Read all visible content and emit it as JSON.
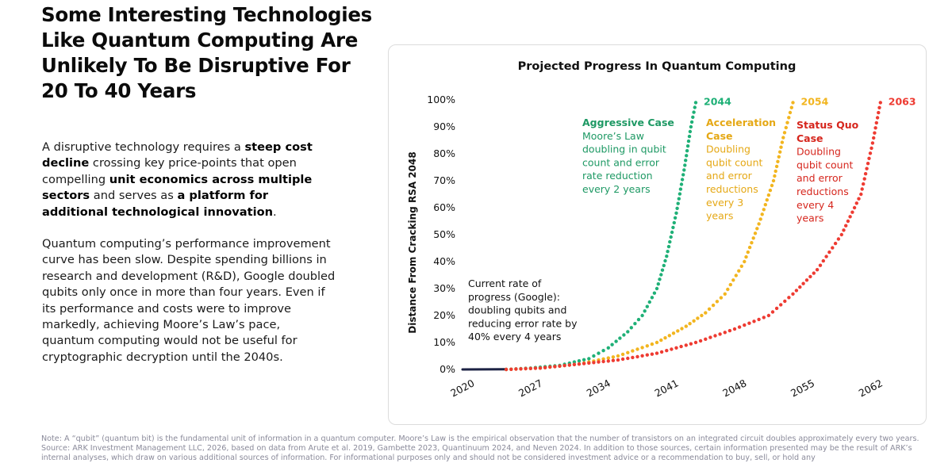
{
  "headline": "Some Interesting Technologies Like Quantum Computing Are Unlikely To Be Disruptive For 20 To 40 Years",
  "body": {
    "p1": [
      {
        "t": "A disruptive technology requires a ",
        "b": false
      },
      {
        "t": "steep cost decline",
        "b": true
      },
      {
        "t": " crossing key price-points that open compelling ",
        "b": false
      },
      {
        "t": "unit economics across multiple sectors",
        "b": true
      },
      {
        "t": " and serves as ",
        "b": false
      },
      {
        "t": "a platform for additional technological innovation",
        "b": true
      },
      {
        "t": ".",
        "b": false
      }
    ],
    "p2": "Quantum computing’s performance improvement curve has been slow. Despite spending billions in research and development (R&D), Google doubled qubits only once in more than four years. Even if its performance and costs were to improve markedly, achieving Moore’s Law’s pace, quantum computing would not be useful for cryptographic decryption until the 2040s."
  },
  "note": "Note: A “qubit” (quantum bit) is the fundamental unit of information in a quantum computer. Moore’s Law is the empirical observation that the number of transistors on an integrated circuit doubles approximately every two years. Source: ARK Investment Management LLC, 2026, based on data from Arute et al. 2019, Gambette 2023, Quantinuum 2024, and Neven 2024. In addition to those sources, certain information presented may be the result of ARK’s internal analyses, which draw on various additional sources of information. For informational purposes only and should not be considered investment advice or a recommendation to buy, sell, or hold any",
  "chart_data": {
    "type": "line",
    "title": "Projected Progress In Quantum Computing",
    "ylabel": "Distance From Cracking RSA 2048",
    "ylim": [
      0,
      100
    ],
    "yticks": [
      "0%",
      "10%",
      "20%",
      "30%",
      "40%",
      "50%",
      "60%",
      "70%",
      "80%",
      "90%",
      "100%"
    ],
    "xlim": [
      2020,
      2064
    ],
    "xticks": [
      2020,
      2027,
      2034,
      2041,
      2048,
      2055,
      2062
    ],
    "grid": false,
    "series": [
      {
        "style": "solid",
        "color": "#1c2244",
        "x": [
          2020,
          2024.5
        ],
        "y": [
          0,
          0.1
        ]
      },
      {
        "color": "#1fb077",
        "end_label": "2044",
        "x": [
          2024.5,
          2027,
          2030,
          2033,
          2035,
          2037,
          2038.5,
          2040,
          2041,
          2042,
          2042.8,
          2043.5,
          2044
        ],
        "y": [
          0,
          0.5,
          1.5,
          4,
          8,
          14,
          20,
          30,
          42,
          58,
          74,
          90,
          99
        ]
      },
      {
        "color": "#f2b51f",
        "end_label": "2054",
        "x": [
          2024.5,
          2028,
          2032,
          2036,
          2040,
          2043,
          2045,
          2047,
          2049,
          2050.5,
          2052,
          2053,
          2054
        ],
        "y": [
          0,
          0.5,
          2,
          5,
          10,
          16,
          21,
          28,
          40,
          54,
          70,
          86,
          99
        ]
      },
      {
        "color": "#ee3b32",
        "end_label": "2063",
        "x": [
          2024.5,
          2028,
          2032,
          2036,
          2040,
          2044,
          2048,
          2051.5,
          2054,
          2056.5,
          2059,
          2061,
          2062.2,
          2063
        ],
        "y": [
          0,
          0.5,
          2,
          3.5,
          6,
          10,
          15,
          20,
          28,
          37,
          50,
          65,
          84,
          99
        ]
      }
    ],
    "annotations": [
      {
        "title": "Aggressive Case",
        "title_color": "#1e9964",
        "text": [
          "Moore’s Law",
          "doubling in qubit",
          "count and error",
          "rate reduction",
          "every 2 years"
        ],
        "text_color": "#1e9964"
      },
      {
        "title": "Acceleration Case",
        "title_lines": [
          "Acceleration",
          "Case"
        ],
        "title_color": "#e5a815",
        "text": [
          "Doubling",
          "qubit count",
          "and error",
          "reductions",
          "every 3",
          "years"
        ],
        "text_color": "#e5a815"
      },
      {
        "title": "Status Quo Case",
        "title_lines": [
          "Status Quo",
          "Case"
        ],
        "title_color": "#d6261d",
        "text": [
          "Doubling",
          "qubit count",
          "and error",
          "reductions",
          "every 4",
          "years"
        ],
        "text_color": "#d6261d"
      },
      {
        "title": "",
        "text": [
          "Current rate of",
          "progress (Google):",
          "doubling qubits and",
          "reducing error rate by",
          "40% every 4 years"
        ],
        "text_color": "#111111"
      }
    ]
  }
}
